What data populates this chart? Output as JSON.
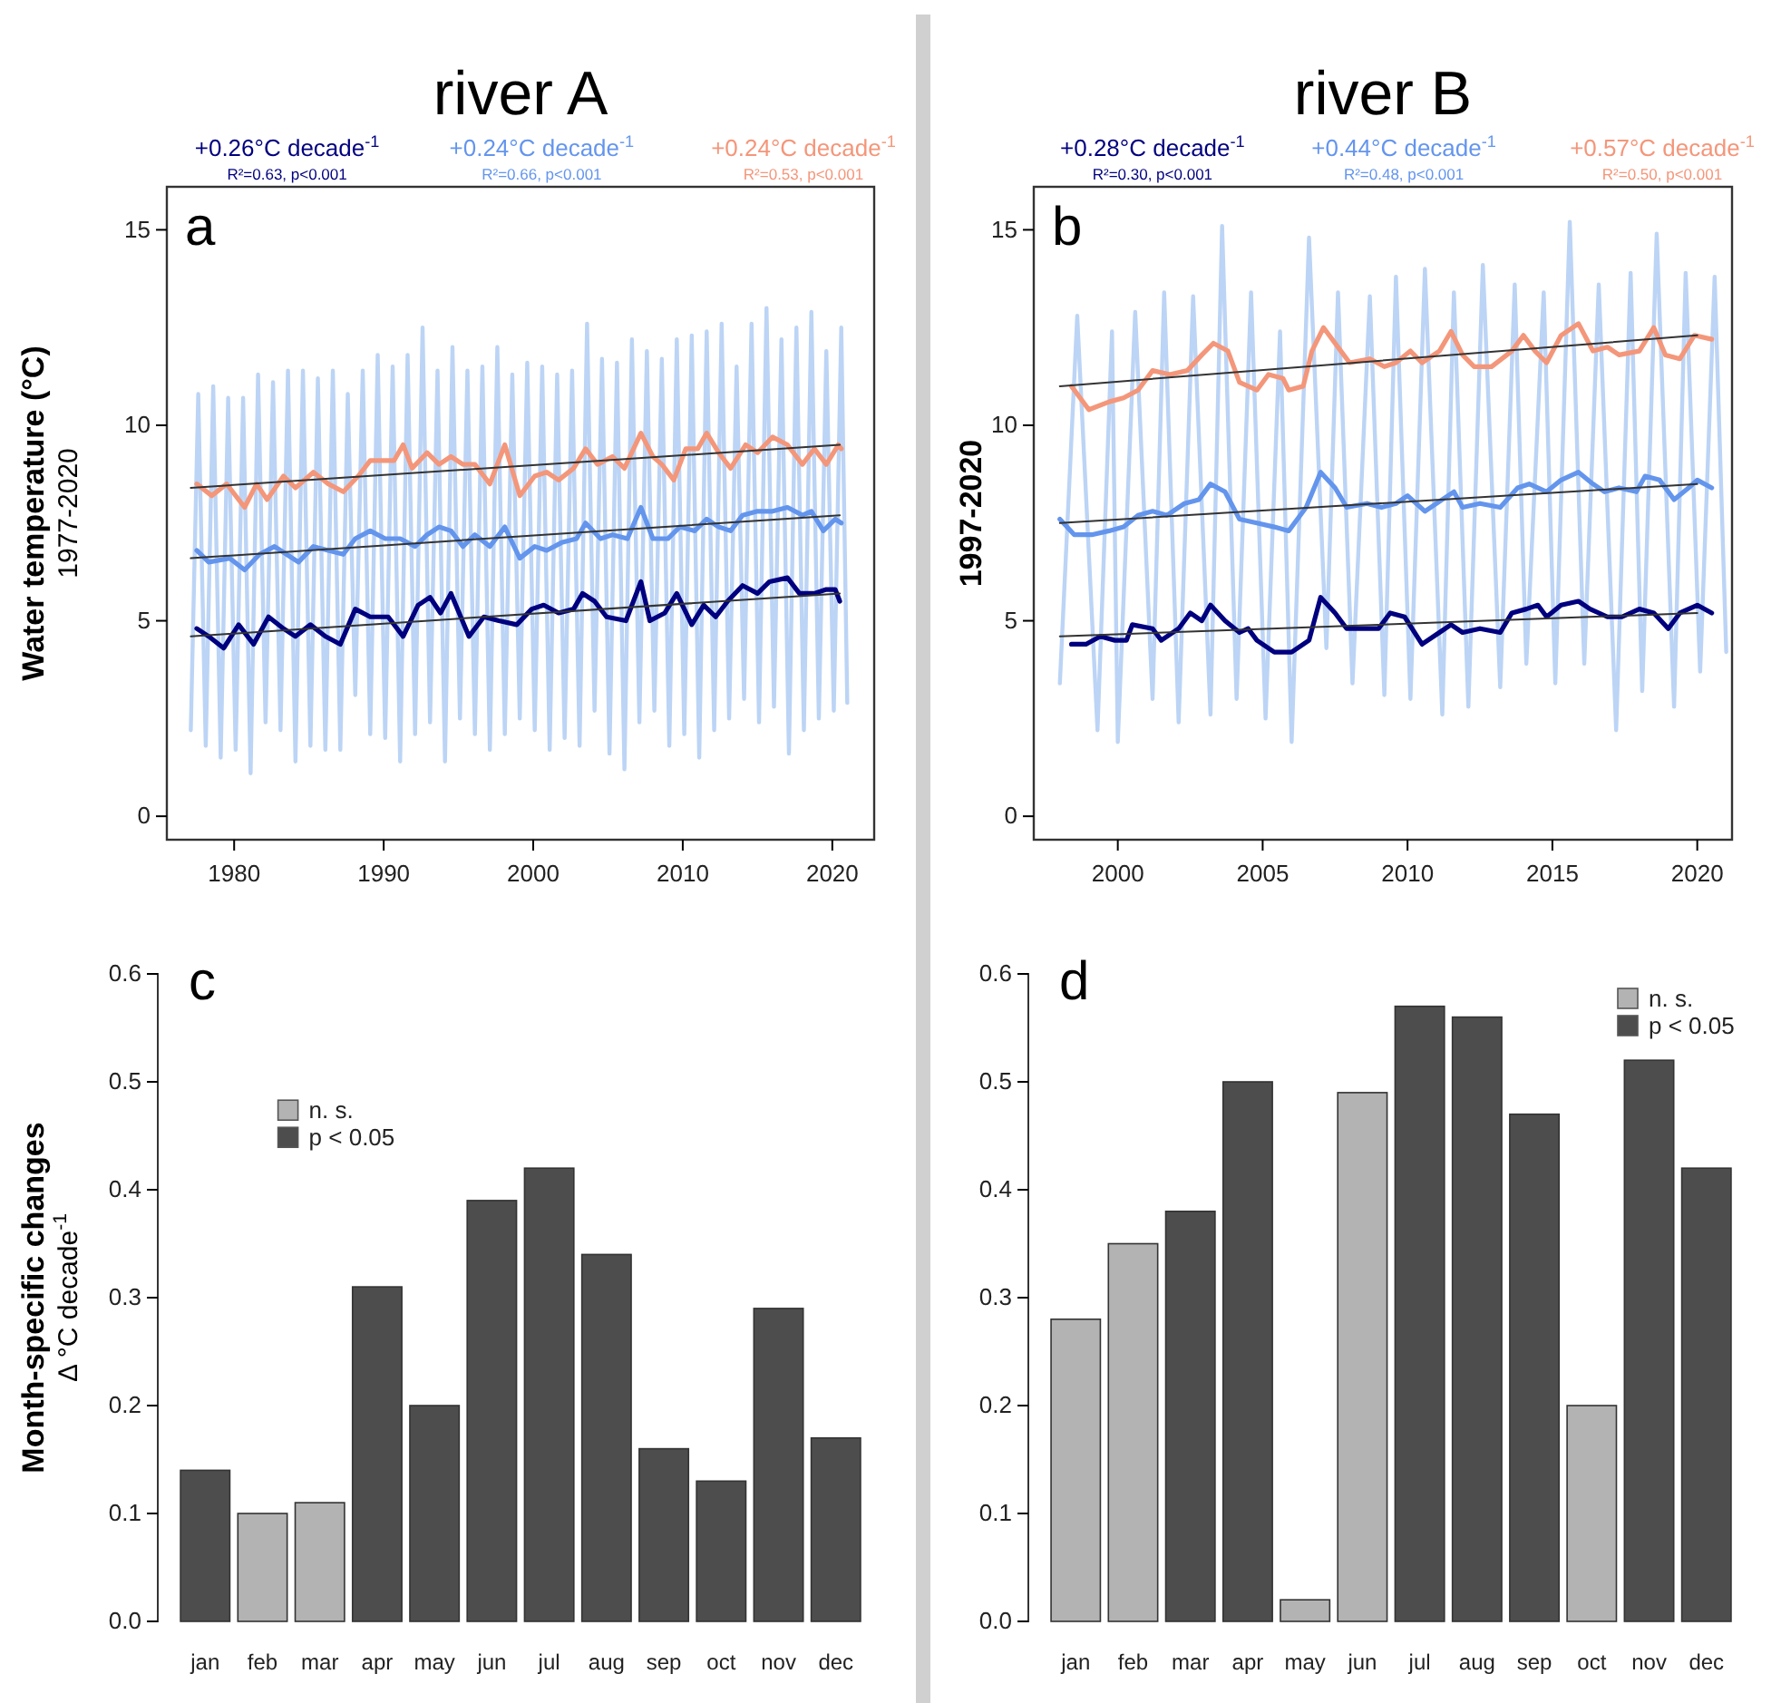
{
  "chart_data": [
    {
      "type": "line",
      "title": "river A",
      "ylabel": "Water temperature (°C)\n1977-2020",
      "xlim": [
        1975.5,
        2022.8
      ],
      "xticks": [
        1980,
        1990,
        2000,
        2010,
        2020
      ],
      "ylim": [
        -0.6,
        16.1
      ],
      "yticks": [
        0,
        5,
        10,
        15
      ],
      "annotations": [
        "a",
        "R²=0.63, p<0.001",
        "R²=0.66, p<0.001",
        "R²=0.53, p<0.001"
      ],
      "series": [
        {
          "color": "#bcd4f5",
          "x": [
            1977.1,
            1977.6,
            1978.1,
            1978.6,
            1979.1,
            1979.6,
            1980.1,
            1980.6,
            1981.1,
            1981.6,
            1982.1,
            1982.6,
            1983.1,
            1983.6,
            1984.1,
            1984.6,
            1985.1,
            1985.6,
            1986.1,
            1986.6,
            1987.1,
            1987.6,
            1988.1,
            1988.6,
            1989.1,
            1989.6,
            1990.1,
            1990.6,
            1991.1,
            1991.6,
            1992.1,
            1992.6,
            1993.1,
            1993.6,
            1994.1,
            1994.6,
            1995.1,
            1995.6,
            1996.1,
            1996.6,
            1997.1,
            1997.6,
            1998.1,
            1998.6,
            1999.1,
            1999.6,
            2000.1,
            2000.6,
            2001.1,
            2001.6,
            2002.1,
            2002.6,
            2003.1,
            2003.6,
            2004.1,
            2004.6,
            2005.1,
            2005.6,
            2006.1,
            2006.6,
            2007.1,
            2007.6,
            2008.1,
            2008.6,
            2009.1,
            2009.6,
            2010.1,
            2010.6,
            2011.1,
            2011.6,
            2012.1,
            2012.6,
            2013.1,
            2013.6,
            2014.1,
            2014.6,
            2015.1,
            2015.6,
            2016.1,
            2016.6,
            2017.1,
            2017.6,
            2018.1,
            2018.6,
            2019.1,
            2019.6,
            2020.1,
            2020.6,
            2021.0
          ],
          "values": [
            2.2,
            10.8,
            1.8,
            11.0,
            1.5,
            10.7,
            1.7,
            10.7,
            1.1,
            11.3,
            2.4,
            11.1,
            2.2,
            11.4,
            1.4,
            11.4,
            1.8,
            11.2,
            1.7,
            11.4,
            1.7,
            10.8,
            3.1,
            11.4,
            2.1,
            11.8,
            2.0,
            11.5,
            1.4,
            11.8,
            2.1,
            12.5,
            2.4,
            11.4,
            1.4,
            12.0,
            2.5,
            11.4,
            2.1,
            11.5,
            1.7,
            12.0,
            2.1,
            11.3,
            2.5,
            11.6,
            2.2,
            11.5,
            1.7,
            11.3,
            2.0,
            11.4,
            1.8,
            12.6,
            2.7,
            11.7,
            1.6,
            11.6,
            1.2,
            12.2,
            2.4,
            11.9,
            2.7,
            11.7,
            1.8,
            12.2,
            2.1,
            12.3,
            1.5,
            12.4,
            2.2,
            12.6,
            2.5,
            11.5,
            3.0,
            12.6,
            2.4,
            13.0,
            2.8,
            12.2,
            1.6,
            12.5,
            2.2,
            12.9,
            2.5,
            11.9,
            2.7,
            12.5,
            2.9
          ]
        },
        {
          "name": "+0.26°C decade$^{-1}$",
          "color": "#00007f",
          "x": [
            1977.5,
            1978.3,
            1979.3,
            1980.3,
            1981.3,
            1982.3,
            1983.3,
            1984.1,
            1985.1,
            1986.1,
            1987.1,
            1988.1,
            1989.1,
            1990.3,
            1991.3,
            1992.3,
            1993.1,
            1993.8,
            1994.5,
            1995.7,
            1996.7,
            1997.7,
            1998.9,
            1999.9,
            2000.7,
            2001.7,
            2002.7,
            2003.3,
            2004.1,
            2004.9,
            2006.2,
            2007.2,
            2007.8,
            2008.8,
            2009.6,
            2010.6,
            2011.4,
            2012.2,
            2013.0,
            2014.0,
            2015.0,
            2015.8,
            2017.0,
            2017.8,
            2018.8,
            2019.6,
            2020.2,
            2020.5
          ],
          "values": [
            4.8,
            4.6,
            4.3,
            4.9,
            4.4,
            5.1,
            4.8,
            4.6,
            4.9,
            4.6,
            4.4,
            5.3,
            5.1,
            5.1,
            4.6,
            5.4,
            5.6,
            5.2,
            5.7,
            4.6,
            5.1,
            5.0,
            4.9,
            5.3,
            5.4,
            5.2,
            5.3,
            5.7,
            5.5,
            5.1,
            5.0,
            6.0,
            5.0,
            5.2,
            5.7,
            4.9,
            5.4,
            5.1,
            5.5,
            5.9,
            5.7,
            6.0,
            6.1,
            5.7,
            5.7,
            5.8,
            5.8,
            5.5
          ]
        },
        {
          "name": "+0.24°C decade$^{-1}$",
          "color": "#6495ed",
          "x": [
            1977.5,
            1978.3,
            1979.7,
            1980.7,
            1981.7,
            1982.7,
            1983.5,
            1984.3,
            1985.3,
            1986.3,
            1987.3,
            1988.1,
            1989.1,
            1990.1,
            1991.1,
            1992.1,
            1992.9,
            1993.7,
            1994.5,
            1995.3,
            1996.1,
            1997.1,
            1998.1,
            1999.1,
            2000.1,
            2000.9,
            2001.9,
            2002.9,
            2003.5,
            2004.5,
            2005.3,
            2006.3,
            2007.2,
            2008.0,
            2009.0,
            2009.8,
            2010.8,
            2011.6,
            2012.4,
            2013.2,
            2014.0,
            2015.0,
            2016.0,
            2017.0,
            2018.0,
            2018.6,
            2019.4,
            2020.2,
            2020.6
          ],
          "values": [
            6.8,
            6.5,
            6.6,
            6.3,
            6.7,
            6.9,
            6.7,
            6.5,
            6.9,
            6.8,
            6.7,
            7.1,
            7.3,
            7.1,
            7.1,
            6.9,
            7.2,
            7.4,
            7.3,
            6.9,
            7.2,
            6.9,
            7.4,
            6.6,
            6.9,
            6.8,
            7.0,
            7.1,
            7.5,
            7.1,
            7.2,
            7.1,
            7.9,
            7.1,
            7.1,
            7.4,
            7.3,
            7.6,
            7.4,
            7.3,
            7.7,
            7.8,
            7.8,
            7.9,
            7.7,
            7.8,
            7.3,
            7.6,
            7.5
          ]
        },
        {
          "name": "+0.24°C decade$^{-1}$",
          "color": "#f4967a",
          "x": [
            1977.5,
            1978.5,
            1979.5,
            1980.7,
            1981.5,
            1982.2,
            1983.3,
            1984.1,
            1985.3,
            1986.3,
            1987.3,
            1988.3,
            1989.1,
            1989.9,
            1990.7,
            1991.3,
            1991.9,
            1992.9,
            1993.7,
            1994.5,
            1995.3,
            1996.1,
            1997.1,
            1998.1,
            1999.1,
            2000.1,
            2000.9,
            2001.7,
            2002.7,
            2003.5,
            2004.3,
            2005.3,
            2006.1,
            2007.2,
            2008.0,
            2008.6,
            2009.4,
            2010.2,
            2011.0,
            2011.6,
            2012.4,
            2013.2,
            2014.2,
            2015.0,
            2016.0,
            2017.0,
            2018.0,
            2018.8,
            2019.6,
            2020.4,
            2020.6
          ],
          "values": [
            8.5,
            8.2,
            8.5,
            7.9,
            8.5,
            8.1,
            8.7,
            8.4,
            8.8,
            8.5,
            8.3,
            8.7,
            9.1,
            9.1,
            9.1,
            9.5,
            8.9,
            9.3,
            9.0,
            9.2,
            9.0,
            9.0,
            8.5,
            9.5,
            8.2,
            8.7,
            8.8,
            8.6,
            8.9,
            9.4,
            9.0,
            9.2,
            8.9,
            9.8,
            9.2,
            9.0,
            8.6,
            9.4,
            9.4,
            9.8,
            9.3,
            8.9,
            9.5,
            9.3,
            9.7,
            9.5,
            9.0,
            9.4,
            9.0,
            9.5,
            9.4
          ]
        },
        {
          "color": "#333333",
          "x": [
            1977.1,
            2020.5
          ],
          "values": [
            4.6,
            5.7
          ]
        },
        {
          "color": "#333333",
          "x": [
            1977.1,
            2020.5
          ],
          "values": [
            6.6,
            7.7
          ]
        },
        {
          "color": "#333333",
          "x": [
            1977.1,
            2020.5
          ],
          "values": [
            8.4,
            9.5
          ]
        }
      ]
    },
    {
      "type": "line",
      "title": "river B",
      "ylabel": "1997-2020",
      "xlim": [
        1997.1,
        2021.2
      ],
      "xticks": [
        2000,
        2005,
        2010,
        2015,
        2020
      ],
      "ylim": [
        -0.6,
        16.1
      ],
      "yticks": [
        0,
        5,
        10,
        15
      ],
      "annotations": [
        "b",
        "R²=0.30, p<0.001",
        "R²=0.48, p<0.001",
        "R²=0.50, p<0.001"
      ],
      "series": [
        {
          "color": "#bcd4f5",
          "x": [
            1998.0,
            1998.6,
            1999.3,
            1999.8,
            2000.0,
            2000.6,
            2001.2,
            2001.6,
            2002.1,
            2002.6,
            2003.2,
            2003.6,
            2004.1,
            2004.6,
            2005.1,
            2005.6,
            2006.0,
            2006.6,
            2007.2,
            2007.6,
            2008.1,
            2008.7,
            2009.2,
            2009.6,
            2010.1,
            2010.6,
            2011.2,
            2011.6,
            2012.1,
            2012.6,
            2013.2,
            2013.7,
            2014.1,
            2014.7,
            2015.1,
            2015.6,
            2016.1,
            2016.6,
            2017.2,
            2017.7,
            2018.1,
            2018.6,
            2019.2,
            2019.6,
            2020.1,
            2020.6,
            2021.0
          ],
          "values": [
            3.4,
            12.8,
            2.2,
            12.4,
            1.9,
            12.9,
            3.0,
            13.4,
            2.4,
            13.3,
            2.6,
            15.1,
            3.0,
            13.4,
            2.5,
            12.4,
            1.9,
            14.8,
            4.3,
            13.4,
            3.4,
            13.3,
            3.1,
            13.8,
            3.0,
            14.0,
            2.6,
            13.4,
            2.8,
            14.1,
            3.3,
            13.6,
            3.9,
            13.4,
            3.4,
            15.2,
            3.9,
            13.6,
            2.2,
            13.9,
            3.2,
            14.9,
            2.8,
            13.9,
            3.7,
            13.8,
            4.2
          ]
        },
        {
          "name": "+0.28°C decade$^{-1}$",
          "color": "#00007f",
          "x": [
            1998.4,
            1998.9,
            1999.4,
            1999.9,
            2000.3,
            2000.5,
            2001.2,
            2001.5,
            2002.1,
            2002.5,
            2002.9,
            2003.2,
            2003.7,
            2004.2,
            2004.5,
            2004.8,
            2005.4,
            2006.0,
            2006.6,
            2007.0,
            2007.5,
            2007.9,
            2008.6,
            2009.0,
            2009.4,
            2009.9,
            2010.5,
            2011.1,
            2011.5,
            2011.9,
            2012.5,
            2013.2,
            2013.6,
            2014.1,
            2014.5,
            2014.8,
            2015.3,
            2015.9,
            2016.3,
            2016.9,
            2017.4,
            2018.0,
            2018.5,
            2019.0,
            2019.4,
            2020.0,
            2020.5
          ],
          "values": [
            4.4,
            4.4,
            4.6,
            4.5,
            4.5,
            4.9,
            4.8,
            4.5,
            4.8,
            5.2,
            5.0,
            5.4,
            5.0,
            4.7,
            4.8,
            4.5,
            4.2,
            4.2,
            4.5,
            5.6,
            5.2,
            4.8,
            4.8,
            4.8,
            5.2,
            5.1,
            4.4,
            4.7,
            4.9,
            4.7,
            4.8,
            4.7,
            5.2,
            5.3,
            5.4,
            5.1,
            5.4,
            5.5,
            5.3,
            5.1,
            5.1,
            5.3,
            5.2,
            4.8,
            5.2,
            5.4,
            5.2
          ]
        },
        {
          "name": "+0.44°C decade$^{-1}$",
          "color": "#6495ed",
          "x": [
            1998.0,
            1998.5,
            1999.1,
            1999.7,
            2000.2,
            2000.7,
            2001.2,
            2001.7,
            2002.3,
            2002.8,
            2003.2,
            2003.7,
            2004.2,
            2004.8,
            2005.4,
            2005.9,
            2006.5,
            2007.0,
            2007.5,
            2007.9,
            2008.6,
            2009.1,
            2009.6,
            2010.0,
            2010.6,
            2011.2,
            2011.6,
            2011.9,
            2012.5,
            2013.2,
            2013.8,
            2014.2,
            2014.8,
            2015.3,
            2015.9,
            2016.4,
            2016.8,
            2017.3,
            2017.9,
            2018.2,
            2018.7,
            2019.2,
            2019.7,
            2020.0,
            2020.5
          ],
          "values": [
            7.6,
            7.2,
            7.2,
            7.3,
            7.4,
            7.7,
            7.8,
            7.7,
            8.0,
            8.1,
            8.5,
            8.3,
            7.6,
            7.5,
            7.4,
            7.3,
            7.9,
            8.8,
            8.4,
            7.9,
            8.0,
            7.9,
            8.0,
            8.2,
            7.8,
            8.1,
            8.3,
            7.9,
            8.0,
            7.9,
            8.4,
            8.5,
            8.3,
            8.6,
            8.8,
            8.5,
            8.3,
            8.4,
            8.3,
            8.7,
            8.6,
            8.1,
            8.4,
            8.6,
            8.4
          ]
        },
        {
          "name": "+0.57°C decade$^{-1}$",
          "color": "#f4967a",
          "x": [
            1998.4,
            1999.0,
            1999.7,
            2000.2,
            2000.7,
            2001.2,
            2001.8,
            2002.4,
            2002.9,
            2003.3,
            2003.8,
            2004.2,
            2004.8,
            2005.2,
            2005.7,
            2005.9,
            2006.4,
            2006.7,
            2007.1,
            2007.7,
            2008.0,
            2008.7,
            2009.2,
            2009.6,
            2010.1,
            2010.5,
            2011.1,
            2011.5,
            2011.9,
            2012.3,
            2012.9,
            2013.6,
            2014.0,
            2014.4,
            2014.8,
            2015.3,
            2015.9,
            2016.4,
            2016.9,
            2017.3,
            2018.0,
            2018.5,
            2018.9,
            2019.4,
            2019.9,
            2020.5
          ],
          "values": [
            11.0,
            10.4,
            10.6,
            10.7,
            10.9,
            11.4,
            11.3,
            11.4,
            11.8,
            12.1,
            11.9,
            11.1,
            10.9,
            11.3,
            11.2,
            10.9,
            11.0,
            11.9,
            12.5,
            11.9,
            11.6,
            11.7,
            11.5,
            11.6,
            11.9,
            11.6,
            11.9,
            12.4,
            11.8,
            11.5,
            11.5,
            11.9,
            12.3,
            11.9,
            11.6,
            12.3,
            12.6,
            11.9,
            12.0,
            11.8,
            11.9,
            12.5,
            11.8,
            11.7,
            12.3,
            12.2
          ]
        },
        {
          "color": "#333333",
          "x": [
            1998.0,
            2020.0
          ],
          "values": [
            4.6,
            5.2
          ]
        },
        {
          "color": "#333333",
          "x": [
            1998.0,
            2020.0
          ],
          "values": [
            7.5,
            8.5
          ]
        },
        {
          "color": "#333333",
          "x": [
            1998.0,
            2020.0
          ],
          "values": [
            11.0,
            12.3
          ]
        }
      ]
    },
    {
      "type": "bar",
      "ylabel": "Month-specific changes\nΔ °C decade$^{-1}$",
      "legend": "top left",
      "annotations": [
        "c"
      ],
      "categories": [
        "jan",
        "feb",
        "mar",
        "apr",
        "may",
        "jun",
        "jul",
        "aug",
        "sep",
        "oct",
        "nov",
        "dec"
      ],
      "ylim": [
        0,
        0.6
      ],
      "yticks": [
        {
          "value": 0,
          "label": "0.0"
        },
        {
          "value": 0.1,
          "label": "0.1"
        },
        {
          "value": 0.2,
          "label": "0.2"
        },
        {
          "value": 0.3,
          "label": "0.3"
        },
        {
          "value": 0.4,
          "label": "0.4"
        },
        {
          "value": 0.5,
          "label": "0.5"
        },
        {
          "value": 0.6,
          "label": "0.6"
        }
      ],
      "series": [
        {
          "name": "n. s.",
          "color": "#b3b3b3",
          "values": [
            null,
            0.1,
            0.11,
            null,
            null,
            null,
            null,
            null,
            null,
            null,
            null,
            null
          ]
        },
        {
          "name": "p < 0.05",
          "color": "#4d4d4d",
          "values": [
            0.14,
            null,
            null,
            0.31,
            0.2,
            0.39,
            0.42,
            0.34,
            0.16,
            0.13,
            0.29,
            0.17
          ]
        }
      ]
    },
    {
      "type": "bar",
      "legend": "top right",
      "annotations": [
        "d"
      ],
      "categories": [
        "jan",
        "feb",
        "mar",
        "apr",
        "may",
        "jun",
        "jul",
        "aug",
        "sep",
        "oct",
        "nov",
        "dec"
      ],
      "ylim": [
        0,
        0.6
      ],
      "yticks": [
        {
          "value": 0,
          "label": "0.0"
        },
        {
          "value": 0.1,
          "label": "0.1"
        },
        {
          "value": 0.2,
          "label": "0.2"
        },
        {
          "value": 0.3,
          "label": "0.3"
        },
        {
          "value": 0.4,
          "label": "0.4"
        },
        {
          "value": 0.5,
          "label": "0.5"
        },
        {
          "value": 0.6,
          "label": "0.6"
        }
      ],
      "series": [
        {
          "name": "n. s.",
          "color": "#b3b3b3",
          "values": [
            0.28,
            0.35,
            null,
            null,
            0.02,
            0.49,
            null,
            null,
            null,
            0.2,
            null,
            null
          ]
        },
        {
          "name": "p < 0.05",
          "color": "#4d4d4d",
          "values": [
            null,
            null,
            0.38,
            0.5,
            null,
            null,
            0.57,
            0.56,
            0.47,
            null,
            0.52,
            0.42
          ]
        }
      ]
    }
  ]
}
